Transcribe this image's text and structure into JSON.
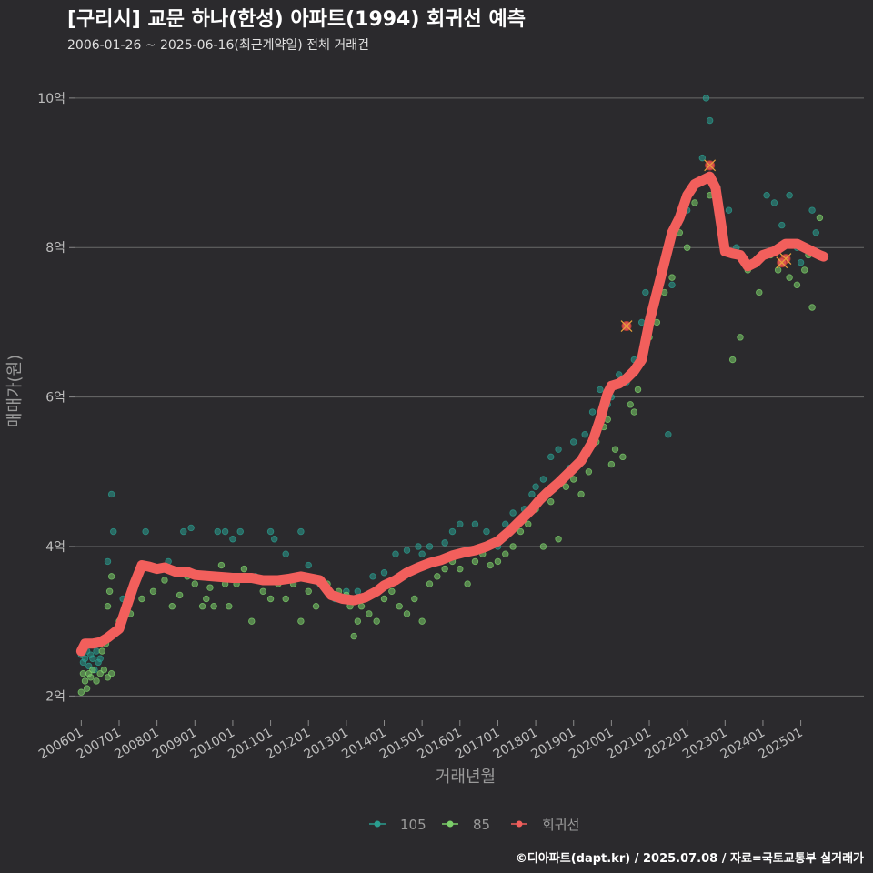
{
  "chart_data": {
    "type": "scatter",
    "title": "[구리시] 교문 하나(한성) 아파트(1994) 회귀선 예측",
    "subtitle": "2006-01-26 ~ 2025-06-16(최근계약일) 전체 거래건",
    "xlabel": "거래년월",
    "ylabel": "매매가(원)",
    "caption": "©디아파트(dapt.kr) / 2025.07.08 / 자료=국토교통부 실거래가",
    "x_range": [
      "2005-08",
      "2026-09"
    ],
    "ylim": [
      1.7,
      10.4
    ],
    "x_ticks": [
      "200601",
      "200701",
      "200801",
      "200901",
      "201001",
      "201101",
      "201201",
      "201301",
      "201401",
      "201501",
      "201601",
      "201701",
      "201801",
      "201901",
      "202001",
      "202101",
      "202201",
      "202301",
      "202401",
      "202501"
    ],
    "y_ticks": [
      {
        "value": 2,
        "label": "2억"
      },
      {
        "value": 4,
        "label": "4억"
      },
      {
        "value": 6,
        "label": "6억"
      },
      {
        "value": 8,
        "label": "8억"
      },
      {
        "value": 10,
        "label": "10억"
      }
    ],
    "grid": true,
    "legend_position": "bottom",
    "legend": [
      {
        "name": "105",
        "color": "#2a9d8f"
      },
      {
        "name": "85",
        "color": "#7ccf6a"
      },
      {
        "name": "회귀선",
        "color": "#f25f5c"
      }
    ],
    "series": [
      {
        "name": "105",
        "color": "#2a9d8f",
        "points": [
          [
            2006.0,
            2.55
          ],
          [
            2006.05,
            2.45
          ],
          [
            2006.1,
            2.5
          ],
          [
            2006.15,
            2.6
          ],
          [
            2006.2,
            2.4
          ],
          [
            2006.25,
            2.55
          ],
          [
            2006.3,
            2.5
          ],
          [
            2006.35,
            2.35
          ],
          [
            2006.4,
            2.6
          ],
          [
            2006.45,
            2.45
          ],
          [
            2006.5,
            2.5
          ],
          [
            2006.7,
            3.8
          ],
          [
            2006.8,
            4.7
          ],
          [
            2006.85,
            4.2
          ],
          [
            2007.1,
            3.3
          ],
          [
            2007.5,
            3.6
          ],
          [
            2007.7,
            4.2
          ],
          [
            2008.0,
            3.7
          ],
          [
            2008.3,
            3.8
          ],
          [
            2008.7,
            4.2
          ],
          [
            2008.9,
            4.25
          ],
          [
            2009.6,
            4.2
          ],
          [
            2009.8,
            4.2
          ],
          [
            2010.0,
            4.1
          ],
          [
            2010.2,
            4.2
          ],
          [
            2010.6,
            3.6
          ],
          [
            2011.0,
            4.2
          ],
          [
            2011.1,
            4.1
          ],
          [
            2011.4,
            3.9
          ],
          [
            2011.8,
            4.2
          ],
          [
            2012.0,
            3.75
          ],
          [
            2012.3,
            3.5
          ],
          [
            2012.7,
            3.3
          ],
          [
            2013.0,
            3.4
          ],
          [
            2013.3,
            3.4
          ],
          [
            2013.7,
            3.6
          ],
          [
            2014.0,
            3.65
          ],
          [
            2014.3,
            3.9
          ],
          [
            2014.6,
            3.95
          ],
          [
            2014.9,
            4.0
          ],
          [
            2015.0,
            3.9
          ],
          [
            2015.2,
            4.0
          ],
          [
            2015.6,
            4.05
          ],
          [
            2015.8,
            4.2
          ],
          [
            2016.0,
            4.3
          ],
          [
            2016.2,
            3.95
          ],
          [
            2016.4,
            4.3
          ],
          [
            2016.7,
            4.2
          ],
          [
            2017.0,
            4.0
          ],
          [
            2017.2,
            4.3
          ],
          [
            2017.4,
            4.45
          ],
          [
            2017.7,
            4.5
          ],
          [
            2017.9,
            4.7
          ],
          [
            2018.0,
            4.8
          ],
          [
            2018.2,
            4.9
          ],
          [
            2018.4,
            5.2
          ],
          [
            2018.6,
            5.3
          ],
          [
            2018.9,
            5.05
          ],
          [
            2019.0,
            5.4
          ],
          [
            2019.3,
            5.5
          ],
          [
            2019.5,
            5.8
          ],
          [
            2019.7,
            6.1
          ],
          [
            2019.9,
            5.9
          ],
          [
            2020.0,
            6.0
          ],
          [
            2020.2,
            6.3
          ],
          [
            2020.4,
            6.2
          ],
          [
            2020.6,
            6.5
          ],
          [
            2020.8,
            7.0
          ],
          [
            2020.9,
            7.4
          ],
          [
            2021.1,
            7.2
          ],
          [
            2021.3,
            7.7
          ],
          [
            2021.5,
            5.5
          ],
          [
            2021.6,
            7.5
          ],
          [
            2022.0,
            8.5
          ],
          [
            2022.1,
            8.8
          ],
          [
            2022.4,
            9.2
          ],
          [
            2022.5,
            10.0
          ],
          [
            2022.6,
            9.7
          ],
          [
            2022.8,
            8.8
          ],
          [
            2023.1,
            8.5
          ],
          [
            2023.3,
            8.0
          ],
          [
            2023.8,
            7.8
          ],
          [
            2024.1,
            8.7
          ],
          [
            2024.3,
            8.6
          ],
          [
            2024.5,
            8.3
          ],
          [
            2024.7,
            8.7
          ],
          [
            2024.9,
            8.0
          ],
          [
            2025.0,
            7.8
          ],
          [
            2025.3,
            8.5
          ],
          [
            2025.4,
            8.2
          ]
        ]
      },
      {
        "name": "85",
        "color": "#7ccf6a",
        "points": [
          [
            2006.0,
            2.05
          ],
          [
            2006.05,
            2.3
          ],
          [
            2006.1,
            2.2
          ],
          [
            2006.15,
            2.1
          ],
          [
            2006.2,
            2.3
          ],
          [
            2006.25,
            2.25
          ],
          [
            2006.3,
            2.35
          ],
          [
            2006.4,
            2.2
          ],
          [
            2006.5,
            2.3
          ],
          [
            2006.6,
            2.35
          ],
          [
            2006.7,
            2.25
          ],
          [
            2006.8,
            2.3
          ],
          [
            2006.55,
            2.6
          ],
          [
            2006.65,
            2.7
          ],
          [
            2006.7,
            3.2
          ],
          [
            2006.75,
            3.4
          ],
          [
            2006.8,
            3.6
          ],
          [
            2007.0,
            3.0
          ],
          [
            2007.3,
            3.1
          ],
          [
            2007.6,
            3.3
          ],
          [
            2007.9,
            3.4
          ],
          [
            2008.2,
            3.55
          ],
          [
            2008.4,
            3.2
          ],
          [
            2008.6,
            3.35
          ],
          [
            2008.8,
            3.6
          ],
          [
            2009.0,
            3.5
          ],
          [
            2009.2,
            3.2
          ],
          [
            2009.3,
            3.3
          ],
          [
            2009.4,
            3.45
          ],
          [
            2009.5,
            3.2
          ],
          [
            2009.6,
            3.6
          ],
          [
            2009.7,
            3.75
          ],
          [
            2009.8,
            3.5
          ],
          [
            2009.9,
            3.2
          ],
          [
            2010.1,
            3.5
          ],
          [
            2010.3,
            3.7
          ],
          [
            2010.5,
            3.0
          ],
          [
            2010.8,
            3.4
          ],
          [
            2011.0,
            3.3
          ],
          [
            2011.2,
            3.5
          ],
          [
            2011.4,
            3.3
          ],
          [
            2011.6,
            3.5
          ],
          [
            2011.8,
            3.0
          ],
          [
            2012.0,
            3.4
          ],
          [
            2012.2,
            3.2
          ],
          [
            2012.5,
            3.5
          ],
          [
            2012.8,
            3.4
          ],
          [
            2013.0,
            3.35
          ],
          [
            2013.1,
            3.2
          ],
          [
            2013.2,
            2.8
          ],
          [
            2013.3,
            3.0
          ],
          [
            2013.4,
            3.2
          ],
          [
            2013.6,
            3.1
          ],
          [
            2013.8,
            3.0
          ],
          [
            2014.0,
            3.3
          ],
          [
            2014.2,
            3.4
          ],
          [
            2014.4,
            3.2
          ],
          [
            2014.6,
            3.1
          ],
          [
            2014.8,
            3.3
          ],
          [
            2015.0,
            3.0
          ],
          [
            2015.2,
            3.5
          ],
          [
            2015.4,
            3.6
          ],
          [
            2015.6,
            3.7
          ],
          [
            2015.8,
            3.8
          ],
          [
            2016.0,
            3.7
          ],
          [
            2016.2,
            3.5
          ],
          [
            2016.4,
            3.8
          ],
          [
            2016.6,
            3.9
          ],
          [
            2016.8,
            3.75
          ],
          [
            2017.0,
            3.8
          ],
          [
            2017.2,
            3.9
          ],
          [
            2017.4,
            4.0
          ],
          [
            2017.6,
            4.2
          ],
          [
            2017.8,
            4.3
          ],
          [
            2018.0,
            4.5
          ],
          [
            2018.2,
            4.0
          ],
          [
            2018.4,
            4.6
          ],
          [
            2018.6,
            4.1
          ],
          [
            2018.8,
            4.8
          ],
          [
            2019.0,
            4.9
          ],
          [
            2019.2,
            4.7
          ],
          [
            2019.4,
            5.0
          ],
          [
            2019.6,
            5.4
          ],
          [
            2019.8,
            5.6
          ],
          [
            2019.9,
            5.7
          ],
          [
            2020.0,
            5.1
          ],
          [
            2020.1,
            5.3
          ],
          [
            2020.3,
            5.2
          ],
          [
            2020.5,
            5.9
          ],
          [
            2020.6,
            5.8
          ],
          [
            2020.7,
            6.1
          ],
          [
            2020.8,
            6.5
          ],
          [
            2021.0,
            6.8
          ],
          [
            2021.2,
            7.0
          ],
          [
            2021.4,
            7.4
          ],
          [
            2021.6,
            7.6
          ],
          [
            2021.8,
            8.2
          ],
          [
            2022.0,
            8.0
          ],
          [
            2022.2,
            8.6
          ],
          [
            2022.4,
            8.9
          ],
          [
            2022.6,
            8.7
          ],
          [
            2022.9,
            8.2
          ],
          [
            2023.2,
            6.5
          ],
          [
            2023.4,
            6.8
          ],
          [
            2023.6,
            7.7
          ],
          [
            2023.9,
            7.4
          ],
          [
            2024.2,
            7.9
          ],
          [
            2024.4,
            7.7
          ],
          [
            2024.7,
            7.6
          ],
          [
            2024.9,
            7.5
          ],
          [
            2025.1,
            7.7
          ],
          [
            2025.3,
            7.2
          ],
          [
            2025.5,
            8.4
          ],
          [
            2025.2,
            7.9
          ]
        ]
      }
    ],
    "regression": {
      "name": "회귀선",
      "color": "#f25f5c",
      "points": [
        [
          2006.0,
          2.6
        ],
        [
          2006.1,
          2.7
        ],
        [
          2006.3,
          2.7
        ],
        [
          2006.5,
          2.72
        ],
        [
          2006.7,
          2.78
        ],
        [
          2007.0,
          2.9
        ],
        [
          2007.2,
          3.2
        ],
        [
          2007.4,
          3.5
        ],
        [
          2007.6,
          3.75
        ],
        [
          2007.8,
          3.73
        ],
        [
          2008.0,
          3.7
        ],
        [
          2008.2,
          3.72
        ],
        [
          2008.5,
          3.66
        ],
        [
          2008.8,
          3.66
        ],
        [
          2009.0,
          3.62
        ],
        [
          2009.5,
          3.6
        ],
        [
          2010.0,
          3.58
        ],
        [
          2010.5,
          3.58
        ],
        [
          2010.8,
          3.55
        ],
        [
          2011.2,
          3.55
        ],
        [
          2011.5,
          3.57
        ],
        [
          2011.8,
          3.6
        ],
        [
          2012.0,
          3.58
        ],
        [
          2012.3,
          3.55
        ],
        [
          2012.6,
          3.35
        ],
        [
          2012.9,
          3.3
        ],
        [
          2013.2,
          3.28
        ],
        [
          2013.5,
          3.32
        ],
        [
          2013.8,
          3.4
        ],
        [
          2014.0,
          3.48
        ],
        [
          2014.3,
          3.55
        ],
        [
          2014.6,
          3.65
        ],
        [
          2014.9,
          3.72
        ],
        [
          2015.2,
          3.78
        ],
        [
          2015.5,
          3.82
        ],
        [
          2015.8,
          3.88
        ],
        [
          2016.1,
          3.92
        ],
        [
          2016.4,
          3.95
        ],
        [
          2016.7,
          4.0
        ],
        [
          2017.0,
          4.07
        ],
        [
          2017.3,
          4.2
        ],
        [
          2017.6,
          4.35
        ],
        [
          2017.9,
          4.5
        ],
        [
          2018.1,
          4.62
        ],
        [
          2018.3,
          4.72
        ],
        [
          2018.6,
          4.85
        ],
        [
          2018.9,
          5.0
        ],
        [
          2019.2,
          5.15
        ],
        [
          2019.5,
          5.4
        ],
        [
          2019.7,
          5.7
        ],
        [
          2019.9,
          6.05
        ],
        [
          2020.0,
          6.15
        ],
        [
          2020.2,
          6.18
        ],
        [
          2020.4,
          6.25
        ],
        [
          2020.6,
          6.35
        ],
        [
          2020.8,
          6.5
        ],
        [
          2021.0,
          7.0
        ],
        [
          2021.2,
          7.4
        ],
        [
          2021.4,
          7.8
        ],
        [
          2021.6,
          8.2
        ],
        [
          2021.8,
          8.4
        ],
        [
          2022.0,
          8.7
        ],
        [
          2022.2,
          8.85
        ],
        [
          2022.4,
          8.9
        ],
        [
          2022.6,
          8.95
        ],
        [
          2022.75,
          8.8
        ],
        [
          2022.9,
          8.3
        ],
        [
          2023.0,
          7.95
        ],
        [
          2023.2,
          7.92
        ],
        [
          2023.4,
          7.9
        ],
        [
          2023.6,
          7.75
        ],
        [
          2023.8,
          7.8
        ],
        [
          2024.0,
          7.9
        ],
        [
          2024.3,
          7.95
        ],
        [
          2024.6,
          8.05
        ],
        [
          2024.9,
          8.05
        ],
        [
          2025.1,
          8.0
        ],
        [
          2025.3,
          7.95
        ],
        [
          2025.5,
          7.9
        ],
        [
          2025.6,
          7.88
        ]
      ]
    },
    "highlight_points": [
      [
        2020.4,
        6.95
      ],
      [
        2022.6,
        9.1
      ],
      [
        2024.6,
        7.85
      ],
      [
        2024.5,
        7.8
      ]
    ]
  }
}
